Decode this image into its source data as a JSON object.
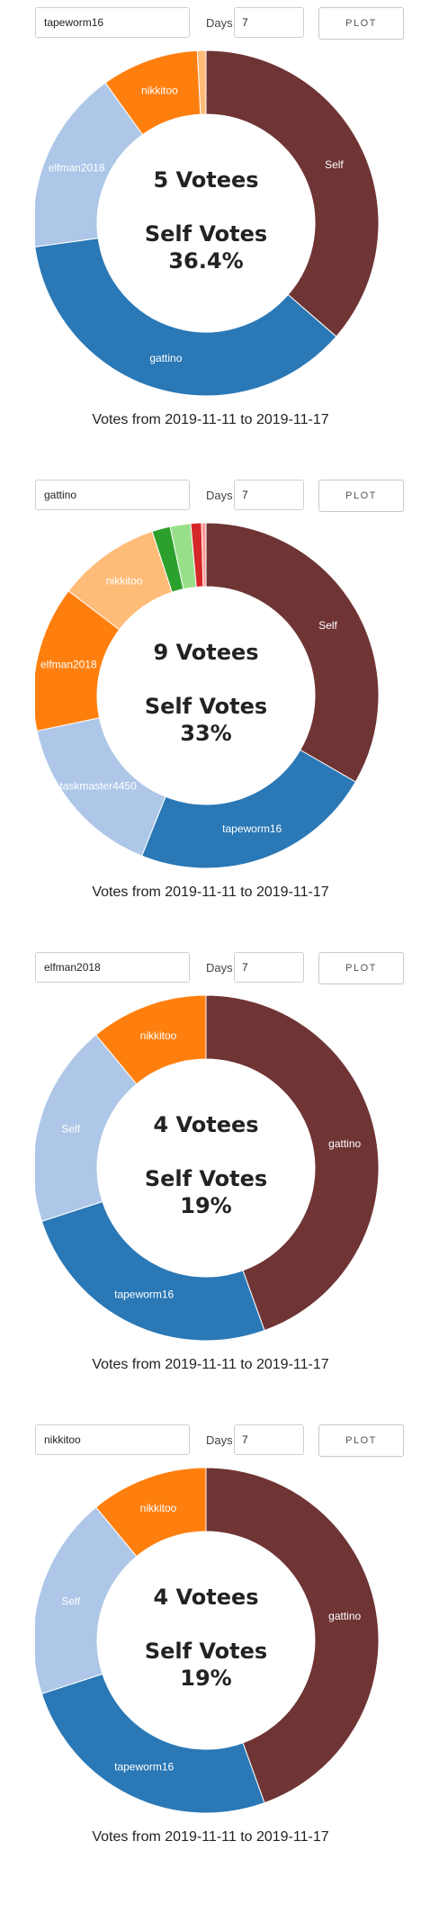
{
  "days_label": "Days",
  "plot_label": "PLOT",
  "caption": "Votes from 2019-11-11 to 2019-11-17",
  "self_votes_label": "Self Votes",
  "panels": [
    {
      "user": "tapeworm16",
      "days": "7",
      "votees": "5 Votees",
      "self_pct": "36.4%"
    },
    {
      "user": "gattino",
      "days": "7",
      "votees": "9 Votees",
      "self_pct": "33%"
    },
    {
      "user": "elfman2018",
      "days": "7",
      "votees": "4 Votees",
      "self_pct": "19%"
    },
    {
      "user": "nikkitoo",
      "days": "7",
      "votees": "4 Votees",
      "self_pct": "19%"
    }
  ],
  "chart_data": [
    {
      "type": "pie",
      "donut": true,
      "slices": [
        {
          "label": "Self",
          "value": 36.4,
          "color": "#6f3434"
        },
        {
          "label": "gattino",
          "value": 36.4,
          "color": "#2a78b6"
        },
        {
          "label": "elfman2018",
          "value": 17.3,
          "color": "#aec7e8"
        },
        {
          "label": "nikkitoo",
          "value": 9.1,
          "color": "#ff7f0e"
        },
        {
          "label": "",
          "value": 0.8,
          "color": "#ffbb78"
        }
      ]
    },
    {
      "type": "pie",
      "donut": true,
      "slices": [
        {
          "label": "Self",
          "value": 33,
          "color": "#6f3434"
        },
        {
          "label": "tapeworm16",
          "value": 22.5,
          "color": "#2a78b6"
        },
        {
          "label": "taskmaster4450",
          "value": 15.5,
          "color": "#aec7e8"
        },
        {
          "label": "elfman2018",
          "value": 13.5,
          "color": "#ff7f0e"
        },
        {
          "label": "nikkitoo",
          "value": 9.5,
          "color": "#ffbb78"
        },
        {
          "label": "",
          "value": 1.7,
          "color": "#2ca02c"
        },
        {
          "label": "",
          "value": 1.9,
          "color": "#98df8a"
        },
        {
          "label": "",
          "value": 1.0,
          "color": "#d62728"
        },
        {
          "label": "",
          "value": 0.4,
          "color": "#ff9896"
        }
      ]
    },
    {
      "type": "pie",
      "donut": true,
      "slices": [
        {
          "label": "gattino",
          "value": 44.5,
          "color": "#6f3434"
        },
        {
          "label": "tapeworm16",
          "value": 25.5,
          "color": "#2a78b6"
        },
        {
          "label": "Self",
          "value": 19,
          "color": "#aec7e8"
        },
        {
          "label": "nikkitoo",
          "value": 11,
          "color": "#ff7f0e"
        }
      ]
    },
    {
      "type": "pie",
      "donut": true,
      "slices": [
        {
          "label": "gattino",
          "value": 44.5,
          "color": "#6f3434"
        },
        {
          "label": "tapeworm16",
          "value": 25.5,
          "color": "#2a78b6"
        },
        {
          "label": "Self",
          "value": 19,
          "color": "#aec7e8"
        },
        {
          "label": "nikkitoo",
          "value": 11,
          "color": "#ff7f0e"
        }
      ]
    }
  ]
}
